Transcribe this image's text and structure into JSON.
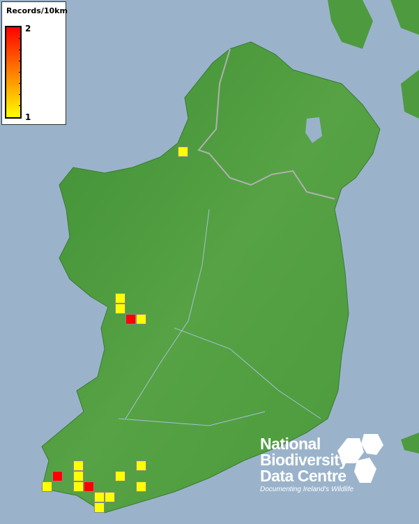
{
  "legend": {
    "title": "Records/10km",
    "max_label": "2",
    "min_label": "1",
    "max_color": "#ff0000",
    "min_color": "#ffff00"
  },
  "colors": {
    "sea": "#9ab3cb",
    "land": "#4e9a3e",
    "border": "#b0b0b0"
  },
  "records": [
    {
      "col": 17,
      "row": 14,
      "value": 1
    },
    {
      "col": 11,
      "row": 28,
      "value": 1
    },
    {
      "col": 11,
      "row": 29,
      "value": 1
    },
    {
      "col": 12,
      "row": 30,
      "value": 2
    },
    {
      "col": 13,
      "row": 30,
      "value": 1
    },
    {
      "col": 7,
      "row": 44,
      "value": 1
    },
    {
      "col": 7,
      "row": 45,
      "value": 1
    },
    {
      "col": 7,
      "row": 46,
      "value": 1
    },
    {
      "col": 8,
      "row": 46,
      "value": 2
    },
    {
      "col": 5,
      "row": 45,
      "value": 2
    },
    {
      "col": 4,
      "row": 46,
      "value": 1
    },
    {
      "col": 9,
      "row": 47,
      "value": 1
    },
    {
      "col": 10,
      "row": 47,
      "value": 1
    },
    {
      "col": 9,
      "row": 48,
      "value": 1
    },
    {
      "col": 11,
      "row": 45,
      "value": 1
    },
    {
      "col": 13,
      "row": 44,
      "value": 1
    },
    {
      "col": 13,
      "row": 46,
      "value": 1
    }
  ],
  "logo": {
    "line1": "National",
    "line2": "Biodiversity",
    "line3": "Data Centre",
    "tagline": "Documenting Ireland's Wildlife"
  }
}
